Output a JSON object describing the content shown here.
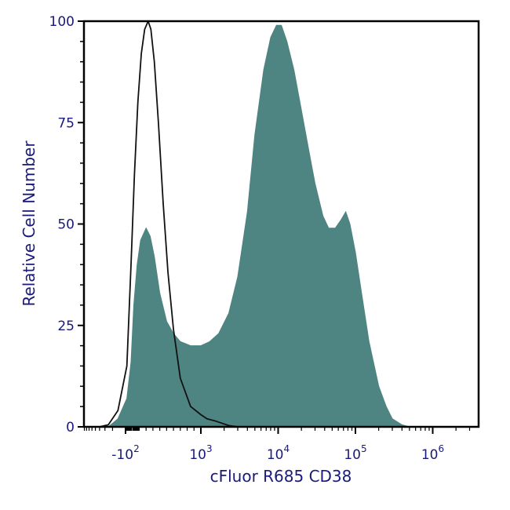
{
  "chart_data": {
    "type": "area",
    "xlabel": "cFluor R685 CD38",
    "ylabel": "Relative Cell Number",
    "x_scale": "biexponential (log above ~10^3)",
    "ylim": [
      0,
      100
    ],
    "y_ticks": [
      {
        "value": 0,
        "label": "0"
      },
      {
        "value": 25,
        "label": "25"
      },
      {
        "value": 50,
        "label": "50"
      },
      {
        "value": 75,
        "label": "75"
      },
      {
        "value": 100,
        "label": "100"
      }
    ],
    "x_ticks": [
      {
        "label": "-10",
        "exp": "2"
      },
      {
        "label": "10",
        "exp": "3"
      },
      {
        "label": "10",
        "exp": "4"
      },
      {
        "label": "10",
        "exp": "5"
      },
      {
        "label": "10",
        "exp": "6"
      }
    ],
    "grid": false,
    "legend": "none",
    "series": [
      {
        "style": "filled",
        "color": "#4e8481",
        "points": [
          [
            -400,
            0
          ],
          [
            -250,
            0
          ],
          [
            -150,
            2
          ],
          [
            -80,
            7
          ],
          [
            -20,
            16
          ],
          [
            20,
            30
          ],
          [
            70,
            40
          ],
          [
            120,
            46
          ],
          [
            200,
            49
          ],
          [
            260,
            47
          ],
          [
            320,
            42
          ],
          [
            400,
            33
          ],
          [
            500,
            26
          ],
          [
            600,
            23
          ],
          [
            700,
            21
          ],
          [
            850,
            20
          ],
          [
            1000,
            20
          ],
          [
            1300,
            21
          ],
          [
            1700,
            23
          ],
          [
            2300,
            28
          ],
          [
            3000,
            37
          ],
          [
            4000,
            53
          ],
          [
            5000,
            72
          ],
          [
            6500,
            88
          ],
          [
            8000,
            96
          ],
          [
            9500,
            99
          ],
          [
            11000,
            99
          ],
          [
            13000,
            95
          ],
          [
            16000,
            88
          ],
          [
            20000,
            78
          ],
          [
            25000,
            68
          ],
          [
            30000,
            60
          ],
          [
            38000,
            52
          ],
          [
            45000,
            49
          ],
          [
            55000,
            49
          ],
          [
            65000,
            51
          ],
          [
            75000,
            53
          ],
          [
            85000,
            50
          ],
          [
            100000,
            43
          ],
          [
            120000,
            33
          ],
          [
            150000,
            21
          ],
          [
            200000,
            10
          ],
          [
            250000,
            5
          ],
          [
            300000,
            2
          ],
          [
            400000,
            0.5
          ],
          [
            500000,
            0
          ]
        ]
      },
      {
        "style": "outline",
        "color": "#111111",
        "points": [
          [
            -400,
            0
          ],
          [
            -250,
            0.5
          ],
          [
            -150,
            4
          ],
          [
            -80,
            15
          ],
          [
            -20,
            40
          ],
          [
            30,
            62
          ],
          [
            80,
            80
          ],
          [
            130,
            92
          ],
          [
            180,
            98
          ],
          [
            230,
            100
          ],
          [
            270,
            98
          ],
          [
            320,
            90
          ],
          [
            380,
            75
          ],
          [
            450,
            55
          ],
          [
            520,
            38
          ],
          [
            600,
            24
          ],
          [
            700,
            12
          ],
          [
            850,
            5
          ],
          [
            1000,
            3
          ],
          [
            1200,
            2
          ],
          [
            1500,
            1.5
          ],
          [
            1800,
            1
          ],
          [
            2300,
            0.3
          ],
          [
            3000,
            0
          ]
        ]
      }
    ]
  }
}
